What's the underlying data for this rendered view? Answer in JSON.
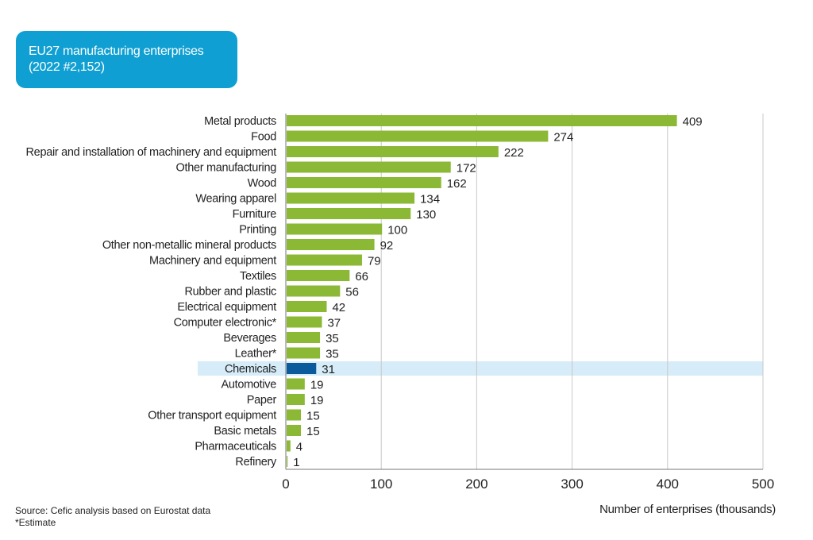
{
  "chart_data": {
    "type": "bar",
    "orientation": "horizontal",
    "title": "EU27 manufacturing enterprises",
    "subtitle": "(2022 #2,152)",
    "xlabel": "Number of enterprises (thousands)",
    "ylabel": "",
    "xlim": [
      0,
      500
    ],
    "xticks": [
      0,
      100,
      200,
      300,
      400,
      500
    ],
    "grid": true,
    "categories": [
      "Metal products",
      "Food",
      "Repair and installation of machinery and equipment",
      "Other manufacturing",
      "Wood",
      "Wearing apparel",
      "Furniture",
      "Printing",
      "Other non-metallic mineral products",
      "Machinery and equipment",
      "Textiles",
      "Rubber and plastic",
      "Electrical equipment",
      "Computer electronic*",
      "Beverages",
      "Leather*",
      "Chemicals",
      "Automotive",
      "Paper",
      "Other transport equipment",
      "Basic metals",
      "Pharmaceuticals",
      "Refinery"
    ],
    "values": [
      409,
      274,
      222,
      172,
      162,
      134,
      130,
      100,
      92,
      79,
      66,
      56,
      42,
      37,
      35,
      35,
      31,
      19,
      19,
      15,
      15,
      4,
      1
    ],
    "highlight": "Chemicals",
    "colors": {
      "bar": "#8bb936",
      "highlight_bar": "#0b5b9c",
      "highlight_band": "#d6ecf8",
      "title_box": "#0f9fd2"
    }
  },
  "footer": {
    "source": "Source: Cefic analysis based on Eurostat data",
    "note": "*Estimate"
  }
}
